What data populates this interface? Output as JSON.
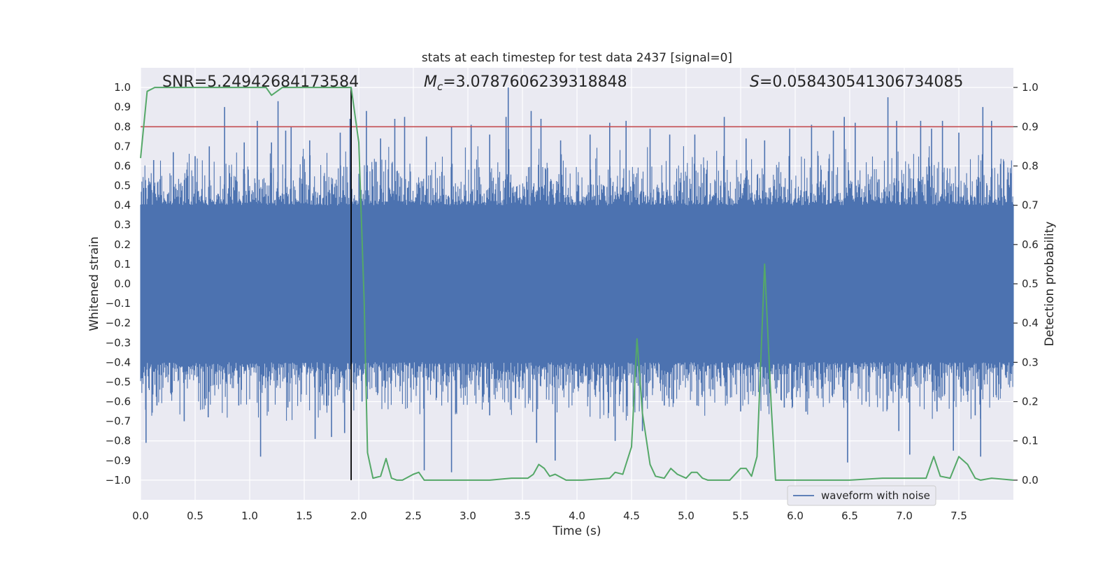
{
  "chart_data": {
    "type": "line",
    "title": "stats at each timestep for test data 2437 [signal=0]",
    "xlabel": "Time (s)",
    "ylabel": "Whitened strain",
    "ylabel_right": "Detection probability",
    "xlim": [
      0.0,
      8.0
    ],
    "ylim": [
      -1.1,
      1.1
    ],
    "ylim_right": [
      -0.05,
      1.05
    ],
    "x_ticks": [
      "0.0",
      "0.5",
      "1.0",
      "1.5",
      "2.0",
      "2.5",
      "3.0",
      "3.5",
      "4.0",
      "4.5",
      "5.0",
      "5.5",
      "6.0",
      "6.5",
      "7.0",
      "7.5"
    ],
    "y_ticks": [
      "1.0",
      "0.9",
      "0.8",
      "0.7",
      "0.6",
      "0.5",
      "0.4",
      "0.3",
      "0.2",
      "0.1",
      "0.0",
      "−0.1",
      "−0.2",
      "−0.3",
      "−0.4",
      "−0.5",
      "−0.6",
      "−0.7",
      "−0.8",
      "−0.9",
      "−1.0"
    ],
    "y_ticks_right": [
      "1.0",
      "0.9",
      "0.8",
      "0.7",
      "0.6",
      "0.5",
      "0.4",
      "0.3",
      "0.2",
      "0.1",
      "0.0"
    ],
    "grid": true,
    "legend_position": "lower-right",
    "annotations": {
      "snr": "SNR=5.24942684173584",
      "mc_symbol": "M",
      "mc_sub": "c",
      "mc_value": "=3.0787606239318848",
      "s_symbol": "S",
      "s_value": "=0.058430541306734085"
    },
    "threshold": {
      "y": 0.9,
      "axis": "right",
      "color": "#c44e52"
    },
    "marker_line": {
      "x": 1.93,
      "color": "#000000"
    },
    "series": [
      {
        "name": "waveform with noise",
        "axis": "left",
        "color": "#4c72b0",
        "typical_amplitude": 0.38,
        "peak_amplitude": 1.0,
        "spikes_positive": [
          [
            0.12,
            0.63
          ],
          [
            0.3,
            0.67
          ],
          [
            0.5,
            0.65
          ],
          [
            0.63,
            0.7
          ],
          [
            0.77,
            0.9
          ],
          [
            0.95,
            0.72
          ],
          [
            1.07,
            0.83
          ],
          [
            1.2,
            0.72
          ],
          [
            1.26,
            0.93
          ],
          [
            1.33,
            0.78
          ],
          [
            1.38,
            0.8
          ],
          [
            1.55,
            0.73
          ],
          [
            1.83,
            0.77
          ],
          [
            1.92,
            0.84
          ],
          [
            2.07,
            0.88
          ],
          [
            2.2,
            0.74
          ],
          [
            2.33,
            0.84
          ],
          [
            2.42,
            0.85
          ],
          [
            2.62,
            0.75
          ],
          [
            2.85,
            0.8
          ],
          [
            3.03,
            0.81
          ],
          [
            3.2,
            0.76
          ],
          [
            3.35,
            0.85
          ],
          [
            3.37,
            1.0
          ],
          [
            3.58,
            0.88
          ],
          [
            3.67,
            0.84
          ],
          [
            3.85,
            0.73
          ],
          [
            4.12,
            0.76
          ],
          [
            4.3,
            0.82
          ],
          [
            4.45,
            0.83
          ],
          [
            4.67,
            0.79
          ],
          [
            4.85,
            0.76
          ],
          [
            5.08,
            0.76
          ],
          [
            5.35,
            0.85
          ],
          [
            5.55,
            0.74
          ],
          [
            5.72,
            0.73
          ],
          [
            5.95,
            0.79
          ],
          [
            6.15,
            0.81
          ],
          [
            6.35,
            0.78
          ],
          [
            6.45,
            0.85
          ],
          [
            6.55,
            0.82
          ],
          [
            6.85,
            0.95
          ],
          [
            6.93,
            0.83
          ],
          [
            7.15,
            0.83
          ],
          [
            7.25,
            0.79
          ],
          [
            7.35,
            0.83
          ],
          [
            7.5,
            0.77
          ],
          [
            7.72,
            0.9
          ],
          [
            7.8,
            0.83
          ]
        ],
        "spikes_negative": [
          [
            0.05,
            -0.81
          ],
          [
            0.15,
            -0.62
          ],
          [
            0.4,
            -0.7
          ],
          [
            0.62,
            -0.68
          ],
          [
            0.9,
            -0.62
          ],
          [
            1.1,
            -0.88
          ],
          [
            1.35,
            -0.63
          ],
          [
            1.6,
            -0.79
          ],
          [
            1.75,
            -0.78
          ],
          [
            1.87,
            -0.76
          ],
          [
            2.03,
            -0.6
          ],
          [
            2.6,
            -0.95
          ],
          [
            2.85,
            -0.96
          ],
          [
            3.2,
            -0.67
          ],
          [
            3.63,
            -0.81
          ],
          [
            3.8,
            -0.9
          ],
          [
            4.35,
            -0.8
          ],
          [
            4.6,
            -0.75
          ],
          [
            4.8,
            -0.62
          ],
          [
            5.1,
            -0.62
          ],
          [
            5.5,
            -0.65
          ],
          [
            5.9,
            -0.63
          ],
          [
            6.1,
            -0.65
          ],
          [
            6.48,
            -0.91
          ],
          [
            6.65,
            -0.6
          ],
          [
            6.95,
            -0.75
          ],
          [
            7.05,
            -0.87
          ],
          [
            7.3,
            -0.65
          ],
          [
            7.45,
            -0.85
          ],
          [
            7.65,
            -0.67
          ],
          [
            7.7,
            -0.88
          ]
        ]
      },
      {
        "name": "detection probability",
        "axis": "right",
        "color": "#55a868",
        "x": [
          0.0,
          0.06,
          0.13,
          0.26,
          0.4,
          0.55,
          0.7,
          0.85,
          1.0,
          1.1,
          1.15,
          1.2,
          1.3,
          1.45,
          1.6,
          1.75,
          1.93,
          2.0,
          2.05,
          2.08,
          2.13,
          2.2,
          2.25,
          2.3,
          2.35,
          2.4,
          2.5,
          2.55,
          2.6,
          2.7,
          2.8,
          3.0,
          3.2,
          3.4,
          3.55,
          3.6,
          3.65,
          3.7,
          3.75,
          3.8,
          3.9,
          4.05,
          4.3,
          4.35,
          4.42,
          4.5,
          4.55,
          4.6,
          4.67,
          4.72,
          4.8,
          4.86,
          4.92,
          5.0,
          5.05,
          5.1,
          5.15,
          5.2,
          5.3,
          5.4,
          5.5,
          5.55,
          5.6,
          5.65,
          5.72,
          5.78,
          5.82,
          5.85,
          5.9,
          6.0,
          6.2,
          6.5,
          6.8,
          7.0,
          7.1,
          7.2,
          7.27,
          7.33,
          7.42,
          7.5,
          7.58,
          7.65,
          7.7,
          7.8,
          8.0
        ],
        "y": [
          0.82,
          0.99,
          1.0,
          1.0,
          1.0,
          1.0,
          1.0,
          1.0,
          1.0,
          1.0,
          1.0,
          0.98,
          1.0,
          1.0,
          1.0,
          1.0,
          1.0,
          0.86,
          0.45,
          0.07,
          0.005,
          0.01,
          0.055,
          0.005,
          0.0,
          0.0,
          0.015,
          0.02,
          0.0,
          0.0,
          0.0,
          0.0,
          0.0,
          0.005,
          0.005,
          0.015,
          0.04,
          0.03,
          0.01,
          0.015,
          0.0,
          0.0,
          0.005,
          0.02,
          0.015,
          0.085,
          0.36,
          0.17,
          0.04,
          0.01,
          0.005,
          0.03,
          0.015,
          0.005,
          0.02,
          0.02,
          0.005,
          0.0,
          0.0,
          0.0,
          0.03,
          0.03,
          0.01,
          0.06,
          0.55,
          0.19,
          0.0,
          0.0,
          0.0,
          0.0,
          0.0,
          0.0,
          0.005,
          0.005,
          0.005,
          0.005,
          0.06,
          0.01,
          0.005,
          0.06,
          0.04,
          0.005,
          0.0,
          0.005,
          0.0
        ]
      }
    ]
  }
}
